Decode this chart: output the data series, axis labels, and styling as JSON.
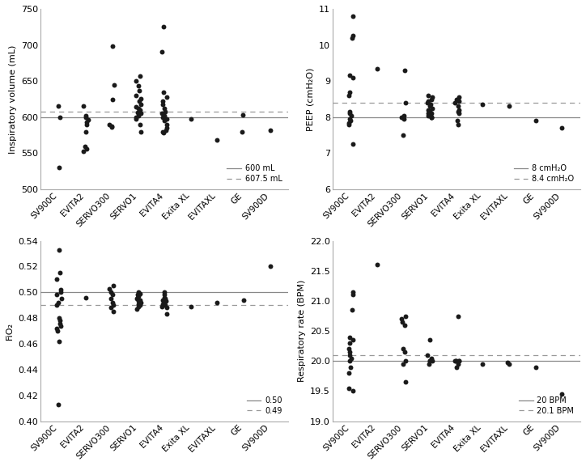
{
  "categories": [
    "SV900C",
    "EVITA2",
    "SERVO300",
    "SERVO1",
    "EVITA4",
    "Exita XL",
    "EVITAXL",
    "GE",
    "SV900D"
  ],
  "vol_data": {
    "SV900C": [
      530,
      600,
      615
    ],
    "EVITA2": [
      553,
      556,
      560,
      580,
      590,
      593,
      596,
      600,
      602,
      615
    ],
    "SERVO300": [
      586,
      587,
      590,
      625,
      645,
      698
    ],
    "SERVO1": [
      580,
      590,
      598,
      600,
      602,
      605,
      607,
      608,
      610,
      612,
      614,
      618,
      622,
      626,
      630,
      637,
      643,
      650,
      657
    ],
    "EVITA4": [
      578,
      580,
      582,
      585,
      590,
      595,
      598,
      600,
      602,
      605,
      608,
      612,
      618,
      622,
      628,
      635,
      690,
      725
    ],
    "Exita XL": [
      597
    ],
    "EVITAXL": [
      568
    ],
    "GE": [
      580,
      603
    ],
    "SV900D": [
      582
    ]
  },
  "vol_ref": 600,
  "vol_median": 607.5,
  "vol_ylim": [
    500,
    750
  ],
  "vol_yticks": [
    500,
    550,
    600,
    650,
    700,
    750
  ],
  "vol_ylabel": "Inspiratory volume (mL)",
  "vol_legend": [
    "600 mL",
    "607.5 mL"
  ],
  "peep_data": {
    "SV900C": [
      7.25,
      7.8,
      7.85,
      7.9,
      7.95,
      8.05,
      8.1,
      8.15,
      8.6,
      8.7,
      9.1,
      9.15,
      10.2,
      10.25,
      10.8
    ],
    "EVITA2": [
      9.35
    ],
    "SERVO300": [
      7.5,
      7.95,
      8.0,
      8.05,
      8.4,
      9.3
    ],
    "SERVO1": [
      8.0,
      8.0,
      8.0,
      8.05,
      8.1,
      8.1,
      8.15,
      8.2,
      8.25,
      8.3,
      8.35,
      8.4,
      8.45,
      8.5,
      8.55,
      8.6
    ],
    "EVITA4": [
      7.8,
      7.9,
      8.1,
      8.15,
      8.2,
      8.3,
      8.4,
      8.45,
      8.5,
      8.55
    ],
    "Exita XL": [
      8.35
    ],
    "EVITAXL": [
      8.3
    ],
    "GE": [
      7.9
    ],
    "SV900D": [
      7.7
    ]
  },
  "peep_ref": 8.0,
  "peep_median": 8.4,
  "peep_ylim": [
    6,
    11
  ],
  "peep_yticks": [
    6,
    7,
    8,
    9,
    10,
    11
  ],
  "peep_ylabel": "PEEP (cmH₂O)",
  "peep_legend": [
    "8 cmH₂O",
    "8.4 cmH₂O"
  ],
  "fio2_data": {
    "SV900C": [
      0.413,
      0.462,
      0.47,
      0.472,
      0.474,
      0.476,
      0.478,
      0.48,
      0.49,
      0.492,
      0.495,
      0.498,
      0.5,
      0.502,
      0.51,
      0.515,
      0.533
    ],
    "EVITA2": [
      0.496
    ],
    "SERVO300": [
      0.485,
      0.488,
      0.49,
      0.492,
      0.495,
      0.498,
      0.5,
      0.503,
      0.505
    ],
    "SERVO1": [
      0.487,
      0.489,
      0.49,
      0.491,
      0.492,
      0.493,
      0.494,
      0.495,
      0.496,
      0.497,
      0.498,
      0.499,
      0.5
    ],
    "EVITA4": [
      0.483,
      0.488,
      0.489,
      0.49,
      0.491,
      0.492,
      0.493,
      0.494,
      0.495,
      0.496,
      0.498,
      0.5
    ],
    "Exita XL": [
      0.489
    ],
    "EVITAXL": [
      0.492
    ],
    "GE": [
      0.494
    ],
    "SV900D": [
      0.52
    ]
  },
  "fio2_ref": 0.5,
  "fio2_median": 0.49,
  "fio2_ylim": [
    0.4,
    0.54
  ],
  "fio2_yticks": [
    0.4,
    0.42,
    0.44,
    0.46,
    0.48,
    0.5,
    0.52,
    0.54
  ],
  "fio2_ylabel": "FiO₂",
  "fio2_legend": [
    "0.50",
    "0.49"
  ],
  "rr_data": {
    "SV900C": [
      19.5,
      19.55,
      19.8,
      19.9,
      20.0,
      20.05,
      20.1,
      20.15,
      20.2,
      20.3,
      20.35,
      20.4,
      20.85,
      21.1,
      21.15
    ],
    "EVITA2": [
      21.6
    ],
    "SERVO300": [
      19.65,
      19.95,
      20.0,
      20.15,
      20.2,
      20.6,
      20.65,
      20.7,
      20.75
    ],
    "SERVO1": [
      19.95,
      20.0,
      20.0,
      20.0,
      20.05,
      20.1,
      20.35
    ],
    "EVITA4": [
      19.9,
      19.95,
      20.0,
      20.0,
      20.0,
      20.0,
      20.0,
      20.75
    ],
    "Exita XL": [
      19.95
    ],
    "EVITAXL": [
      19.95,
      19.98
    ],
    "GE": [
      19.9
    ],
    "SV900D": [
      19.45
    ]
  },
  "rr_ref": 20.0,
  "rr_median": 20.1,
  "rr_ylim": [
    19.0,
    22.0
  ],
  "rr_yticks": [
    19.0,
    19.5,
    20.0,
    20.5,
    21.0,
    21.5,
    22.0
  ],
  "rr_ylabel": "Respiratory rate (BPM)",
  "rr_legend": [
    "20 BPM",
    "20.1 BPM"
  ],
  "dot_color": "#1a1a1a",
  "dot_size": 18,
  "dot_alpha": 1.0,
  "line_color_solid": "#888888",
  "line_color_dashed": "#999999"
}
